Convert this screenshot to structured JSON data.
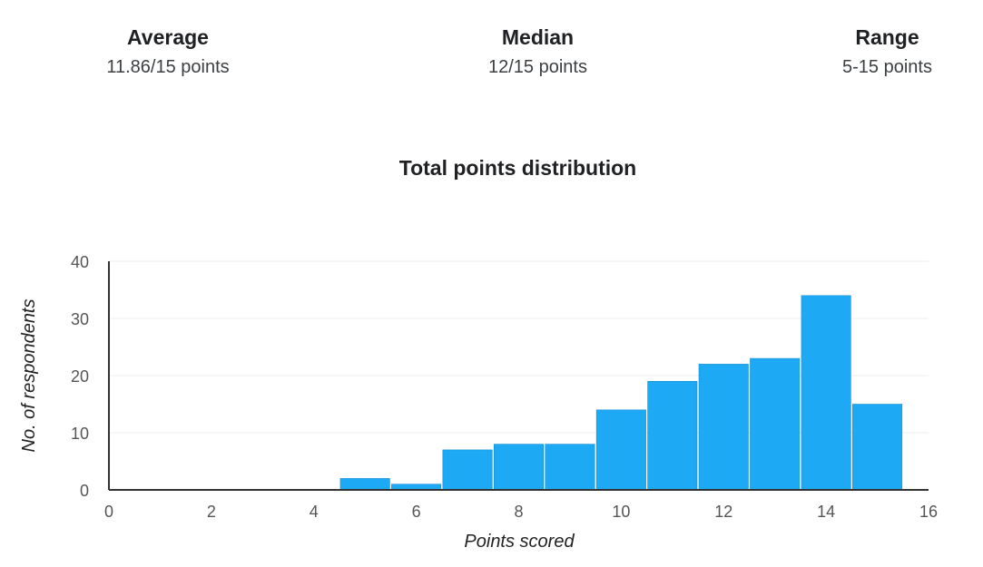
{
  "stats": {
    "average": {
      "label": "Average",
      "value": "11.86/15 points"
    },
    "median": {
      "label": "Median",
      "value": "12/15 points"
    },
    "range": {
      "label": "Range",
      "value": "5-15 points"
    }
  },
  "colors": {
    "bar": "#1ea9f4",
    "axis": "#333333",
    "grid": "#eeeeee"
  },
  "chart_data": {
    "type": "bar",
    "title": "Total points distribution",
    "xlabel": "Points scored",
    "ylabel": "No. of respondents",
    "xlim": [
      0,
      16
    ],
    "ylim": [
      0,
      40
    ],
    "x_ticks": [
      "0",
      "2",
      "4",
      "6",
      "8",
      "10",
      "12",
      "14",
      "16"
    ],
    "y_ticks": [
      "0",
      "10",
      "20",
      "30",
      "40"
    ],
    "bins": [
      5,
      6,
      7,
      8,
      9,
      10,
      11,
      12,
      13,
      14,
      15
    ],
    "values": [
      2,
      1,
      7,
      8,
      8,
      14,
      19,
      22,
      23,
      34,
      15
    ],
    "grid": true
  }
}
